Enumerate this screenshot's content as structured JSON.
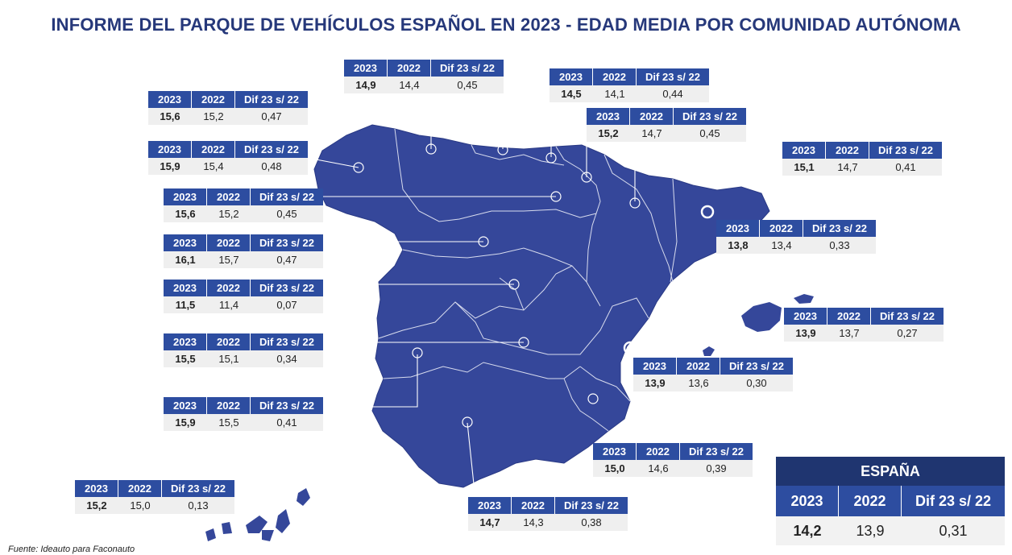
{
  "title": "INFORME DEL PARQUE DE VEHÍCULOS ESPAÑOL EN 2023 - EDAD MEDIA POR COMUNIDAD AUTÓNOMA",
  "colors": {
    "map_fill": "#35479a",
    "header_blue": "#2d4da0",
    "title_blue": "#26387a",
    "row_gray": "#efefef"
  },
  "headers": {
    "y2023": "2023",
    "y2022": "2022",
    "dif": "Dif 23 s/ 22"
  },
  "cards": [
    {
      "v2023": "14,9",
      "v2022": "14,4",
      "dif": "0,45"
    },
    {
      "v2023": "14,5",
      "v2022": "14,1",
      "dif": "0,44"
    },
    {
      "v2023": "15,2",
      "v2022": "14,7",
      "dif": "0,45"
    },
    {
      "v2023": "15,6",
      "v2022": "15,2",
      "dif": "0,47"
    },
    {
      "v2023": "15,9",
      "v2022": "15,4",
      "dif": "0,48"
    },
    {
      "v2023": "15,1",
      "v2022": "14,7",
      "dif": "0,41"
    },
    {
      "v2023": "15,6",
      "v2022": "15,2",
      "dif": "0,45"
    },
    {
      "v2023": "13,8",
      "v2022": "13,4",
      "dif": "0,33"
    },
    {
      "v2023": "16,1",
      "v2022": "15,7",
      "dif": "0,47"
    },
    {
      "v2023": "11,5",
      "v2022": "11,4",
      "dif": "0,07"
    },
    {
      "v2023": "13,9",
      "v2022": "13,7",
      "dif": "0,27"
    },
    {
      "v2023": "15,5",
      "v2022": "15,1",
      "dif": "0,34"
    },
    {
      "v2023": "13,9",
      "v2022": "13,6",
      "dif": "0,30"
    },
    {
      "v2023": "15,9",
      "v2022": "15,5",
      "dif": "0,41"
    },
    {
      "v2023": "15,0",
      "v2022": "14,6",
      "dif": "0,39"
    },
    {
      "v2023": "15,2",
      "v2022": "15,0",
      "dif": "0,13"
    },
    {
      "v2023": "14,7",
      "v2022": "14,3",
      "dif": "0,38"
    }
  ],
  "espana": {
    "label": "ESPAÑA",
    "h2023": "2023",
    "h2022": "2022",
    "hdif": "Dif 23 s/ 22",
    "v2023": "14,2",
    "v2022": "13,9",
    "dif": "0,31"
  },
  "source": "Fuente: Ideauto para Faconauto"
}
